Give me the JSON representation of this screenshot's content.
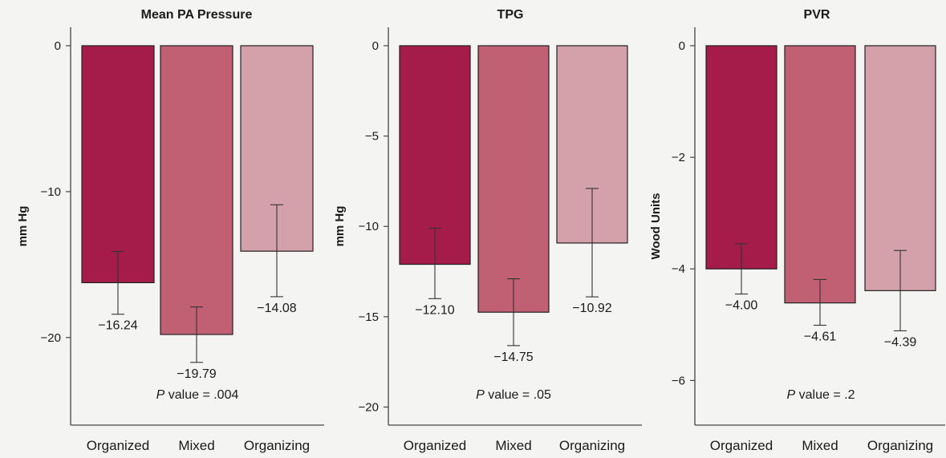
{
  "chart_data": [
    {
      "type": "bar",
      "title": "Mean PA Pressure",
      "ylabel": "mm Hg",
      "categories": [
        "Organized",
        "Mixed",
        "Organizing"
      ],
      "values": [
        -16.24,
        -19.79,
        -14.08
      ],
      "value_labels": [
        "−16.24",
        "−19.79",
        "−14.08"
      ],
      "error_low": [
        -18.4,
        -21.7,
        -17.2
      ],
      "error_high": [
        -14.1,
        -17.9,
        -10.9
      ],
      "ylim": [
        -26,
        1.2
      ],
      "yticks": [
        0,
        -10,
        -20
      ],
      "ytick_labels": [
        "0",
        "−10",
        "−20"
      ],
      "p_label": "P",
      "p_text": " value = .004",
      "colors": [
        "#a51b4a",
        "#c06072",
        "#d4a1ab"
      ]
    },
    {
      "type": "bar",
      "title": "TPG",
      "ylabel": "mm Hg",
      "categories": [
        "Organized",
        "Mixed",
        "Organizing"
      ],
      "values": [
        -12.1,
        -14.75,
        -10.92
      ],
      "value_labels": [
        "−12.10",
        "−14.75",
        "−10.92"
      ],
      "error_low": [
        -14.0,
        -16.6,
        -13.9
      ],
      "error_high": [
        -10.1,
        -12.9,
        -7.9
      ],
      "ylim": [
        -21,
        0.95
      ],
      "yticks": [
        0,
        -5,
        -10,
        -15,
        -20
      ],
      "ytick_labels": [
        "0",
        "−5",
        "−10",
        "−15",
        "−20"
      ],
      "p_label": "P",
      "p_text": " value = .05",
      "colors": [
        "#a51b4a",
        "#c06072",
        "#d4a1ab"
      ]
    },
    {
      "type": "bar",
      "title": "PVR",
      "ylabel": "Wood Units",
      "categories": [
        "Organized",
        "Mixed",
        "Organizing"
      ],
      "values": [
        -4.0,
        -4.61,
        -4.39
      ],
      "value_labels": [
        "−4.00",
        "−4.61",
        "−4.39"
      ],
      "error_low": [
        -4.45,
        -5.01,
        -5.11
      ],
      "error_high": [
        -3.55,
        -4.19,
        -3.67
      ],
      "ylim": [
        -6.8,
        0.3
      ],
      "yticks": [
        0,
        -2,
        -4,
        -6
      ],
      "ytick_labels": [
        "0",
        "−2",
        "−4",
        "−6"
      ],
      "p_label": "P",
      "p_text": " value = .2",
      "colors": [
        "#a51b4a",
        "#c06072",
        "#d4a1ab"
      ]
    }
  ]
}
